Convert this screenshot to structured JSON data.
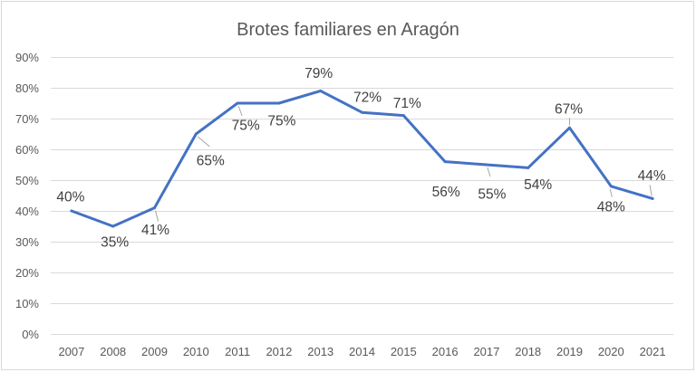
{
  "chart_data": {
    "type": "line",
    "title": "Brotes familiares en Aragón",
    "xlabel": "",
    "ylabel": "",
    "categories": [
      "2007",
      "2008",
      "2009",
      "2010",
      "2011",
      "2012",
      "2013",
      "2014",
      "2015",
      "2016",
      "2017",
      "2018",
      "2019",
      "2020",
      "2021"
    ],
    "series": [
      {
        "values": [
          40,
          35,
          41,
          65,
          75,
          75,
          79,
          72,
          71,
          56,
          55,
          54,
          67,
          48,
          44
        ],
        "data_labels": [
          "40%",
          "35%",
          "41%",
          "65%",
          "75%",
          "75%",
          "79%",
          "72%",
          "71%",
          "56%",
          "55%",
          "54%",
          "67%",
          "48%",
          "44%"
        ],
        "color": "#4472C4"
      }
    ],
    "ylim": [
      0,
      90
    ],
    "yticks": [
      0,
      10,
      20,
      30,
      40,
      50,
      60,
      70,
      80,
      90
    ],
    "ytick_labels": [
      "0%",
      "10%",
      "20%",
      "30%",
      "40%",
      "50%",
      "60%",
      "70%",
      "80%",
      "90%"
    ],
    "grid": true,
    "legend": false
  }
}
